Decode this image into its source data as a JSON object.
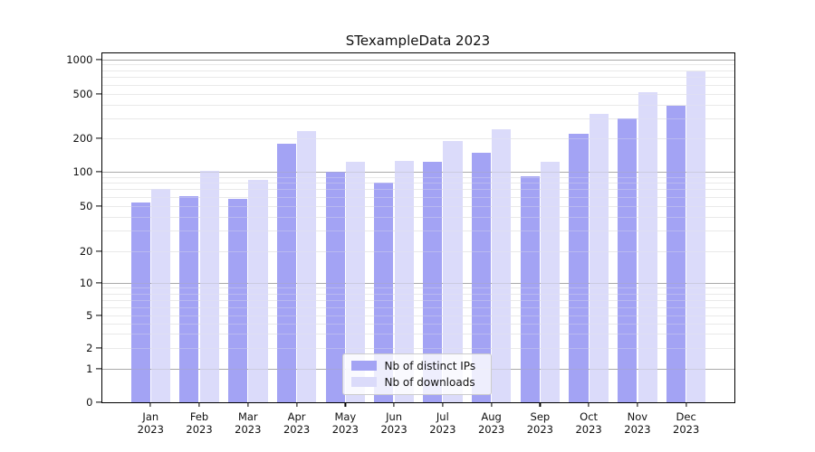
{
  "chart_data": {
    "type": "bar",
    "title": "STexampleData 2023",
    "categories": [
      "Jan 2023",
      "Feb 2023",
      "Mar 2023",
      "Apr 2023",
      "May 2023",
      "Jun 2023",
      "Jul 2023",
      "Aug 2023",
      "Sep 2023",
      "Oct 2023",
      "Nov 2023",
      "Dec 2023"
    ],
    "series": [
      {
        "name": "Nb of distinct IPs",
        "color": "#a3a3f4",
        "values": [
          54,
          61,
          58,
          180,
          100,
          80,
          124,
          147,
          91,
          218,
          300,
          395
        ]
      },
      {
        "name": "Nb of downloads",
        "color": "#dbdbfa",
        "values": [
          70,
          101,
          85,
          231,
          122,
          126,
          190,
          243,
          122,
          330,
          515,
          780
        ]
      }
    ],
    "xlabel": "",
    "ylabel": "",
    "y_ticks": [
      0,
      1,
      2,
      5,
      10,
      20,
      50,
      100,
      200,
      500,
      1000
    ],
    "ylim": [
      0,
      1000
    ],
    "y_scale": "log-with-linear-zero",
    "grid": "major and minor horizontal gridlines",
    "legend_position": "lower center inside plot",
    "colors": {
      "grid_major": "#aaaaaa",
      "grid_minor": "#e9e9e9",
      "axis": "#000000",
      "background": "#ffffff"
    }
  }
}
